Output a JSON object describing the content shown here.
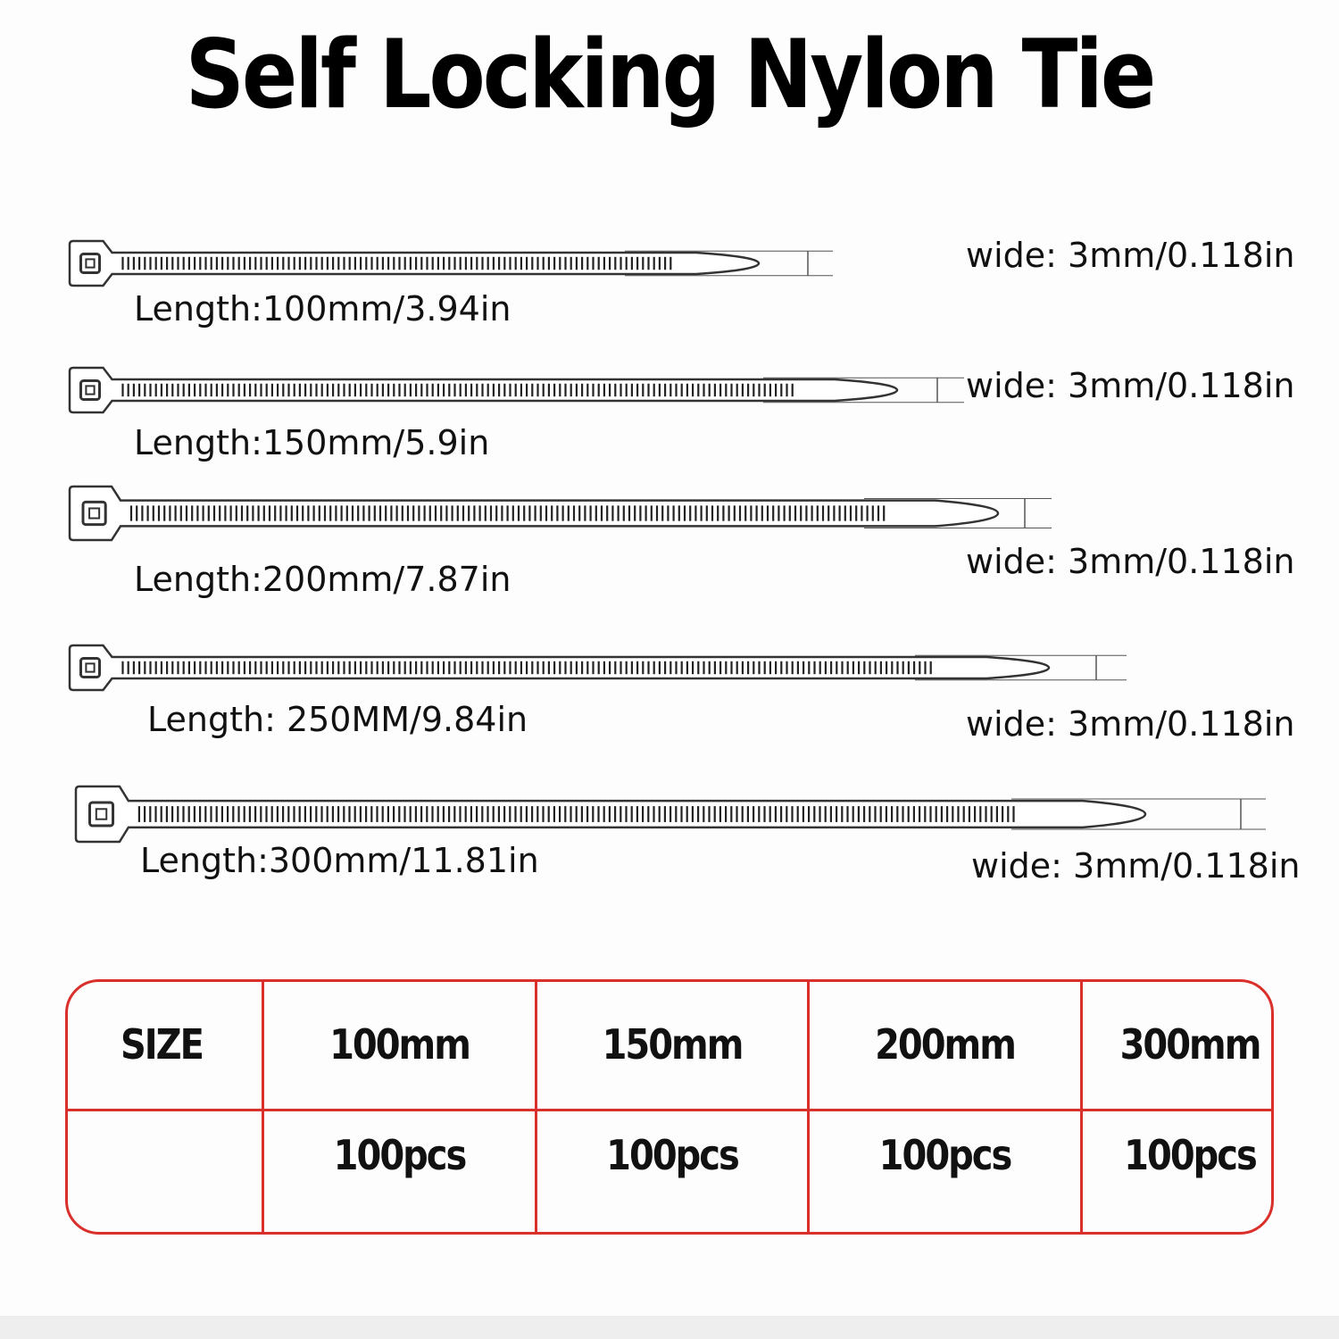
{
  "title": "Self Locking Nylon Tie",
  "ties": [
    {
      "length": "Length:100mm/3.94in",
      "wide": "wide: 3mm/0.118in"
    },
    {
      "length": "Length:150mm/5.9in",
      "wide": "wide: 3mm/0.118in"
    },
    {
      "length": "Length:200mm/7.87in",
      "wide": "wide: 3mm/0.118in"
    },
    {
      "length": "Length:  250MM/9.84in",
      "wide": "wide: 3mm/0.118in"
    },
    {
      "length": "Length:300mm/11.81in",
      "wide": "wide: 3mm/0.118in"
    }
  ],
  "table": {
    "header": [
      "SIZE",
      "100mm",
      "150mm",
      "200mm",
      "300mm"
    ],
    "row": [
      "",
      "100pcs",
      "100pcs",
      "100pcs",
      "100pcs"
    ]
  },
  "colors": {
    "table_border": "#d9302c",
    "tie_outline": "#333333"
  }
}
